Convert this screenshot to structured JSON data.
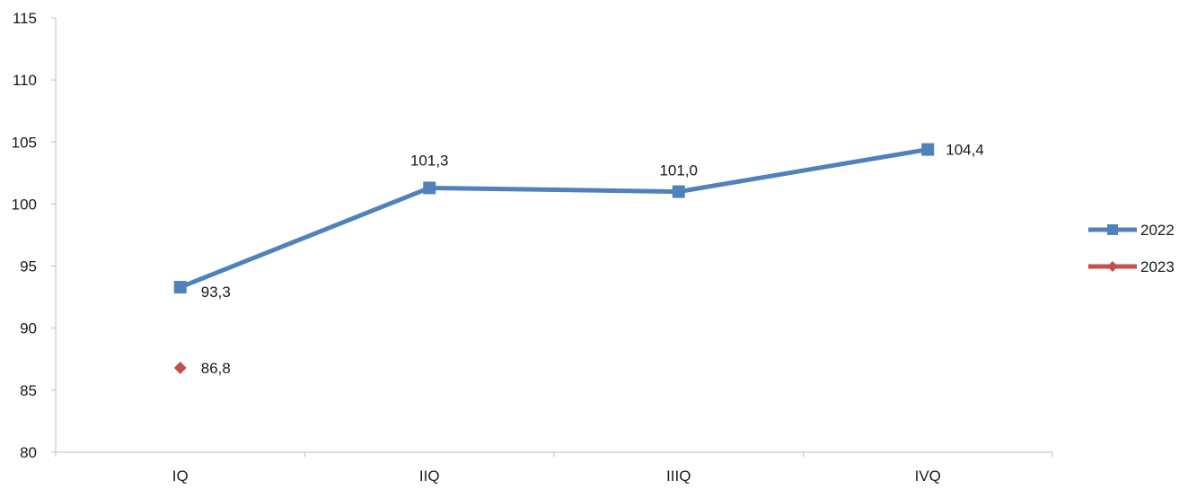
{
  "chart_data": {
    "type": "line",
    "categories": [
      "IQ",
      "IIQ",
      "IIIQ",
      "IVQ"
    ],
    "series": [
      {
        "name": "2022",
        "values": [
          93.3,
          101.3,
          101.0,
          104.4
        ],
        "labels": [
          "93,3",
          "101,3",
          "101,0",
          "104,4"
        ],
        "color": "#4F81BD",
        "marker": "square"
      },
      {
        "name": "2023",
        "values": [
          86.8,
          null,
          null,
          null
        ],
        "labels": [
          "86,8",
          null,
          null,
          null
        ],
        "color": "#C0504D",
        "marker": "diamond"
      }
    ],
    "ylim": [
      80,
      115
    ],
    "yticks": [
      80,
      85,
      90,
      95,
      100,
      105,
      110,
      115
    ],
    "grid": false,
    "legend": "right"
  }
}
